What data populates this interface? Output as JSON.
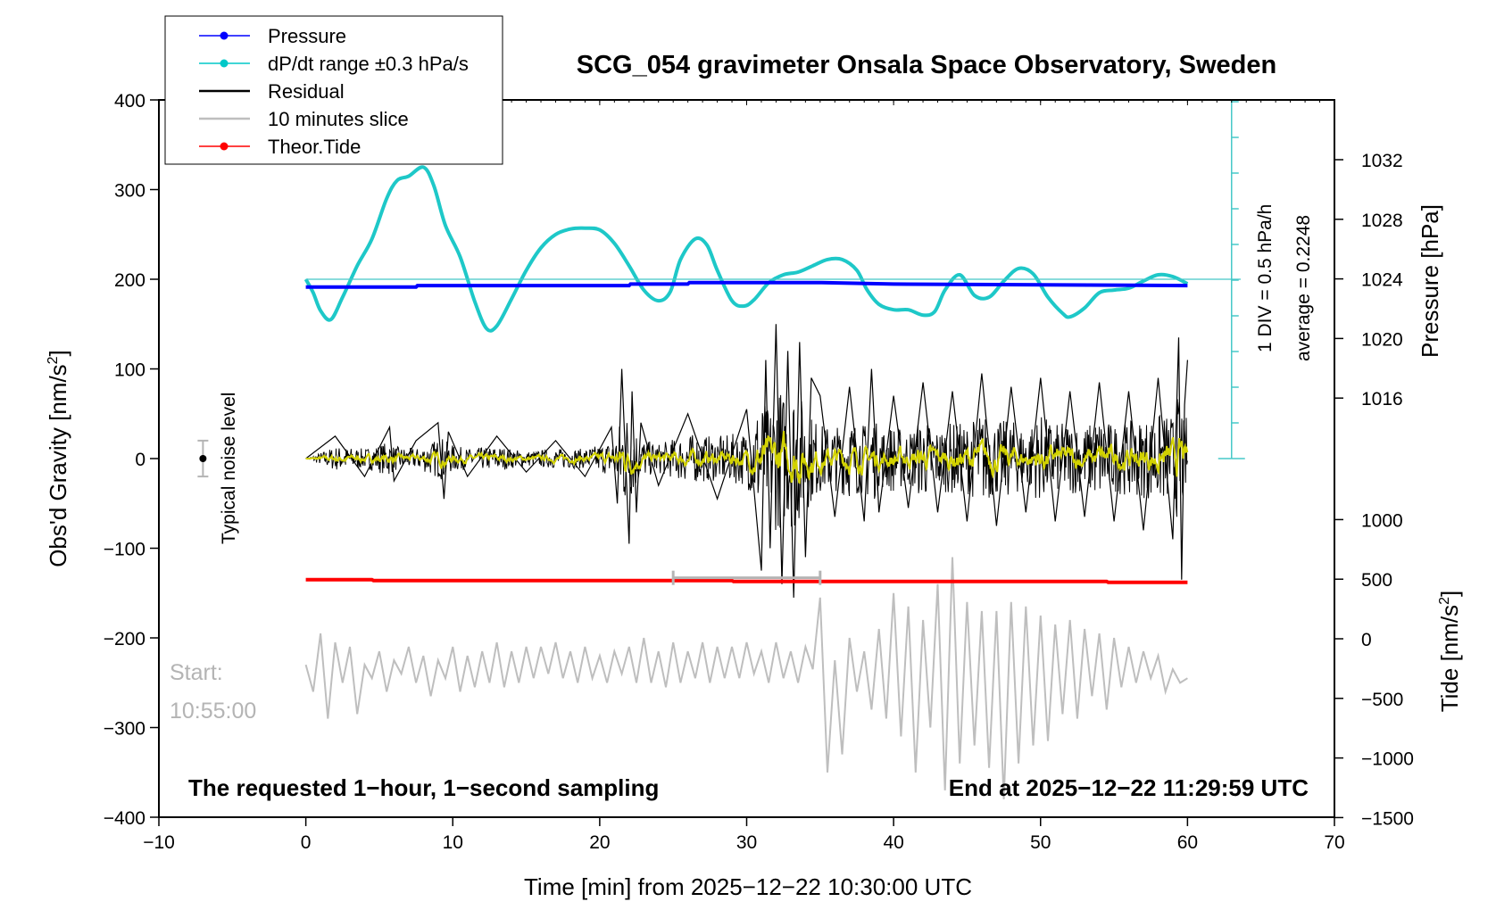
{
  "chart_data": {
    "type": "line",
    "title": "SCG_054 gravimeter Onsala Space Observatory, Sweden",
    "xlabel": "Time [min] from 2025−12−22 10:30:00 UTC",
    "ylabel_left": "Obs'd Gravity [nm/s",
    "ylabel_left_sup": "2",
    "ylabel_left_end": "]",
    "ylabel_pressure": "Pressure [hPa]",
    "ylabel_tide": "Tide [nm/s",
    "ylabel_tide_sup": "2",
    "ylabel_tide_end": "]",
    "xlim": [
      -10,
      70
    ],
    "ylim": [
      -400,
      400
    ],
    "pressure_lim": [
      1008.4,
      1036.2
    ],
    "tide_lim": [
      -1500,
      1500
    ],
    "x_ticks": [
      "−10",
      "0",
      "10",
      "20",
      "30",
      "40",
      "50",
      "60",
      "70"
    ],
    "x_tick_values": [
      -10,
      0,
      10,
      20,
      30,
      40,
      50,
      60,
      70
    ],
    "y_ticks": [
      "400",
      "300",
      "200",
      "100",
      "0",
      "−100",
      "−200",
      "−300",
      "−400"
    ],
    "y_tick_values": [
      400,
      300,
      200,
      100,
      0,
      -100,
      -200,
      -300,
      -400
    ],
    "pressure_ticks": [
      "1032",
      "1028",
      "1024",
      "1020",
      "1016"
    ],
    "pressure_tick_values": [
      1032,
      1028,
      1024,
      1020,
      1016
    ],
    "tide_ticks": [
      "1000",
      "500",
      "0",
      "−500",
      "−1000",
      "−1500"
    ],
    "tide_tick_values": [
      1000,
      500,
      0,
      -500,
      -1000,
      -1500
    ],
    "legend": [
      {
        "label": "Pressure",
        "color": "#0000ff",
        "marker": true
      },
      {
        "label": "dP/dt range ±0.3 hPa/s",
        "color": "#00c8c8",
        "marker": true
      },
      {
        "label": "Residual",
        "color": "#000000",
        "marker": false
      },
      {
        "label": "10 minutes slice",
        "color": "#bebebe",
        "marker": false
      },
      {
        "label": "Theor.Tide",
        "color": "#ff0000",
        "marker": true
      }
    ],
    "colors": {
      "pressure": "#0000ff",
      "dpdt": "#1ec8c8",
      "residual": "#000000",
      "residual_smooth": "#d2d200",
      "slice": "#bebebe",
      "tide": "#ff0000"
    },
    "annotations": {
      "scale_label": "1 DIV = 0.5 hPa/h",
      "average_label": "average = 0.2248",
      "noise_label": "Typical noise level",
      "start_label": "Start:",
      "start_time": "10:55:00",
      "bottom_left": "The requested 1−hour, 1−second sampling",
      "bottom_right": "End at 2025−12−22 11:29:59 UTC"
    },
    "noise_level": {
      "x": -7,
      "y": 0,
      "err": 20
    },
    "slice_window": {
      "x0": 25,
      "x1": 35,
      "y": -135
    },
    "series": [
      {
        "name": "Pressure",
        "axis": "pressure",
        "x": [
          0,
          7.5,
          7.6,
          22,
          22.1,
          26,
          26.1,
          35,
          35.1,
          40,
          60
        ],
        "y": [
          1023.45,
          1023.45,
          1023.55,
          1023.55,
          1023.65,
          1023.65,
          1023.75,
          1023.75,
          1023.75,
          1023.65,
          1023.55
        ]
      },
      {
        "name": "dP/dt range ±0.3 hPa/s",
        "axis": "gravity",
        "x": [
          0,
          0.5,
          1,
          1.7,
          2.5,
          3.5,
          4.5,
          5.5,
          6.2,
          7,
          8,
          8.7,
          9.5,
          10.5,
          11.5,
          12.3,
          13,
          14,
          15,
          16,
          17,
          18,
          19,
          20,
          21,
          22,
          23,
          24,
          24.8,
          25.5,
          26.5,
          27.3,
          28,
          29,
          29.8,
          30.5,
          31.5,
          32.5,
          33.5,
          34.5,
          35.5,
          36.5,
          37.5,
          38.2,
          39,
          40,
          41,
          42,
          42.8,
          43.5,
          44.5,
          45.5,
          46.5,
          47.5,
          48.5,
          49.5,
          50.5,
          51.5,
          52,
          53,
          54,
          55,
          56,
          57,
          58,
          59,
          60
        ],
        "y": [
          200,
          185,
          165,
          155,
          180,
          215,
          245,
          290,
          310,
          315,
          325,
          305,
          260,
          225,
          175,
          145,
          148,
          178,
          210,
          235,
          250,
          256,
          257,
          255,
          240,
          215,
          188,
          176,
          186,
          222,
          245,
          238,
          210,
          176,
          170,
          177,
          196,
          205,
          208,
          215,
          222,
          222,
          210,
          188,
          172,
          166,
          166,
          160,
          164,
          188,
          205,
          182,
          180,
          198,
          212,
          206,
          180,
          162,
          158,
          168,
          185,
          188,
          190,
          198,
          205,
          203,
          195
        ]
      },
      {
        "name": "Theor.Tide",
        "axis": "gravity",
        "x": [
          0,
          4.5,
          4.6,
          29,
          29.1,
          54.5,
          54.6,
          60
        ],
        "y": [
          -135,
          -135,
          -136,
          -136,
          -137,
          -137,
          -138,
          -138
        ]
      },
      {
        "name": "Residual",
        "axis": "gravity",
        "x": [
          0,
          2,
          4,
          5.7,
          6,
          7.5,
          9,
          9.4,
          9.7,
          11,
          13,
          15,
          17,
          19,
          20.8,
          21.2,
          21.5,
          22,
          22.2,
          22.5,
          22.8,
          24,
          26,
          28,
          30,
          31,
          31.3,
          31.6,
          32,
          32.4,
          32.8,
          33.2,
          33.6,
          34,
          34.4,
          35,
          36,
          37,
          38,
          38.5,
          39,
          40,
          41,
          42,
          43,
          44,
          45,
          46,
          47,
          48,
          49,
          50,
          51,
          52,
          53,
          54,
          55,
          56,
          57,
          58,
          59,
          59.4,
          59.6,
          59.8,
          60
        ],
        "y": [
          0,
          25,
          -20,
          35,
          -25,
          20,
          40,
          -45,
          30,
          -20,
          25,
          -15,
          20,
          -20,
          35,
          -50,
          100,
          -95,
          75,
          -60,
          40,
          -30,
          50,
          -45,
          55,
          -125,
          110,
          -100,
          150,
          -140,
          120,
          -155,
          130,
          -110,
          90,
          70,
          -65,
          80,
          -70,
          100,
          -60,
          70,
          -55,
          85,
          -60,
          75,
          -70,
          95,
          -75,
          80,
          -60,
          90,
          -70,
          75,
          -65,
          85,
          -70,
          75,
          -80,
          90,
          -90,
          135,
          -135,
          60,
          110
        ]
      },
      {
        "name": "10 minutes slice",
        "axis": "gravity",
        "x": [
          0,
          0.5,
          1,
          1.5,
          2,
          2.5,
          3,
          3.5,
          4,
          4.5,
          5,
          5.5,
          6,
          6.5,
          7,
          7.5,
          8,
          8.5,
          9,
          9.5,
          10,
          10.5,
          11,
          11.5,
          12,
          12.5,
          13,
          13.5,
          14,
          14.5,
          15,
          15.5,
          16,
          16.5,
          17,
          17.5,
          18,
          18.5,
          19,
          19.5,
          20,
          20.5,
          21,
          21.5,
          22,
          22.5,
          23,
          23.5,
          24,
          24.5,
          25,
          25.5,
          26,
          26.5,
          27,
          27.5,
          28,
          28.5,
          29,
          29.5,
          30,
          30.5,
          31,
          31.5,
          32,
          32.5,
          33,
          33.5,
          34,
          34.5,
          35,
          35.5,
          36,
          36.5,
          37,
          37.5,
          38,
          38.5,
          39,
          39.5,
          40,
          40.5,
          41,
          41.5,
          42,
          42.5,
          43,
          43.5,
          44,
          44.5,
          45,
          45.5,
          46,
          46.5,
          47,
          47.5,
          48,
          48.5,
          49,
          49.5,
          50,
          50.5,
          51,
          51.5,
          52,
          52.5,
          53,
          53.5,
          54,
          54.5,
          55,
          55.5,
          56,
          56.5,
          57,
          57.5,
          58,
          58.5,
          59,
          59.5,
          60
        ],
        "y": [
          -230,
          -260,
          -195,
          -290,
          -205,
          -250,
          -210,
          -285,
          -230,
          -245,
          -215,
          -260,
          -225,
          -240,
          -210,
          -250,
          -220,
          -265,
          -225,
          -245,
          -210,
          -260,
          -220,
          -255,
          -215,
          -250,
          -205,
          -255,
          -215,
          -250,
          -210,
          -245,
          -210,
          -240,
          -205,
          -245,
          -215,
          -250,
          -210,
          -245,
          -220,
          -250,
          -215,
          -240,
          -210,
          -250,
          -200,
          -250,
          -215,
          -255,
          -205,
          -250,
          -215,
          -245,
          -205,
          -250,
          -210,
          -245,
          -210,
          -245,
          -205,
          -240,
          -215,
          -250,
          -205,
          -245,
          -215,
          -250,
          -210,
          -235,
          -155,
          -350,
          -225,
          -330,
          -200,
          -260,
          -215,
          -280,
          -190,
          -290,
          -150,
          -310,
          -165,
          -350,
          -180,
          -300,
          -140,
          -370,
          -110,
          -340,
          -160,
          -320,
          -170,
          -345,
          -170,
          -380,
          -160,
          -340,
          -165,
          -320,
          -175,
          -315,
          -185,
          -285,
          -180,
          -290,
          -190,
          -265,
          -195,
          -280,
          -200,
          -255,
          -210,
          -250,
          -215,
          -245,
          -220,
          -260,
          -235,
          -250,
          -245
        ]
      }
    ]
  }
}
